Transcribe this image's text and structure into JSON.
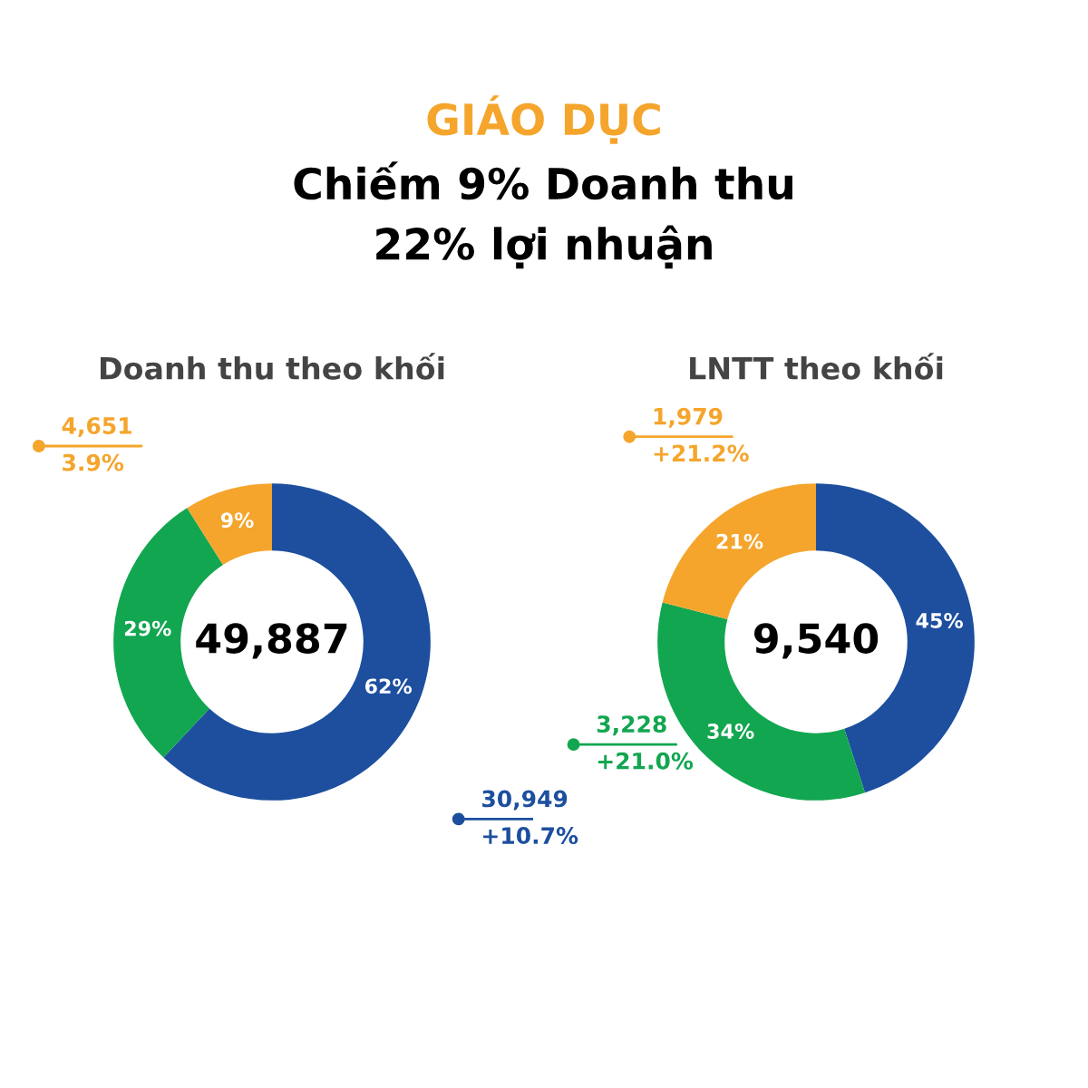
{
  "chart_data": [
    {
      "type": "other",
      "title": "GIÁO DỤC",
      "subtitle": "Chiếm 9% Doanh thu\n22% lợi nhuận"
    },
    {
      "type": "donut",
      "title": "Doanh thu theo khối",
      "categories": [
        null,
        null,
        null
      ],
      "values": [
        62,
        29,
        9
      ],
      "value_labels": [
        "62%",
        "29%",
        "9%"
      ],
      "colors": [
        "#1d4f9e",
        "#12a650",
        "#f5a52c"
      ],
      "annotations": [
        "49,887",
        "30,949",
        "+10.7%",
        "4,651",
        "3.9%"
      ]
    },
    {
      "type": "donut",
      "title": "LNTT theo khối",
      "categories": [
        null,
        null,
        null
      ],
      "values": [
        45,
        34,
        21
      ],
      "value_labels": [
        "45%",
        "34%",
        "21%"
      ],
      "colors": [
        "#1d4f9e",
        "#12a650",
        "#f5a52c"
      ],
      "annotations": [
        "9,540",
        "3,228",
        "+21.0%",
        "1,979",
        "+21.2%"
      ]
    }
  ]
}
